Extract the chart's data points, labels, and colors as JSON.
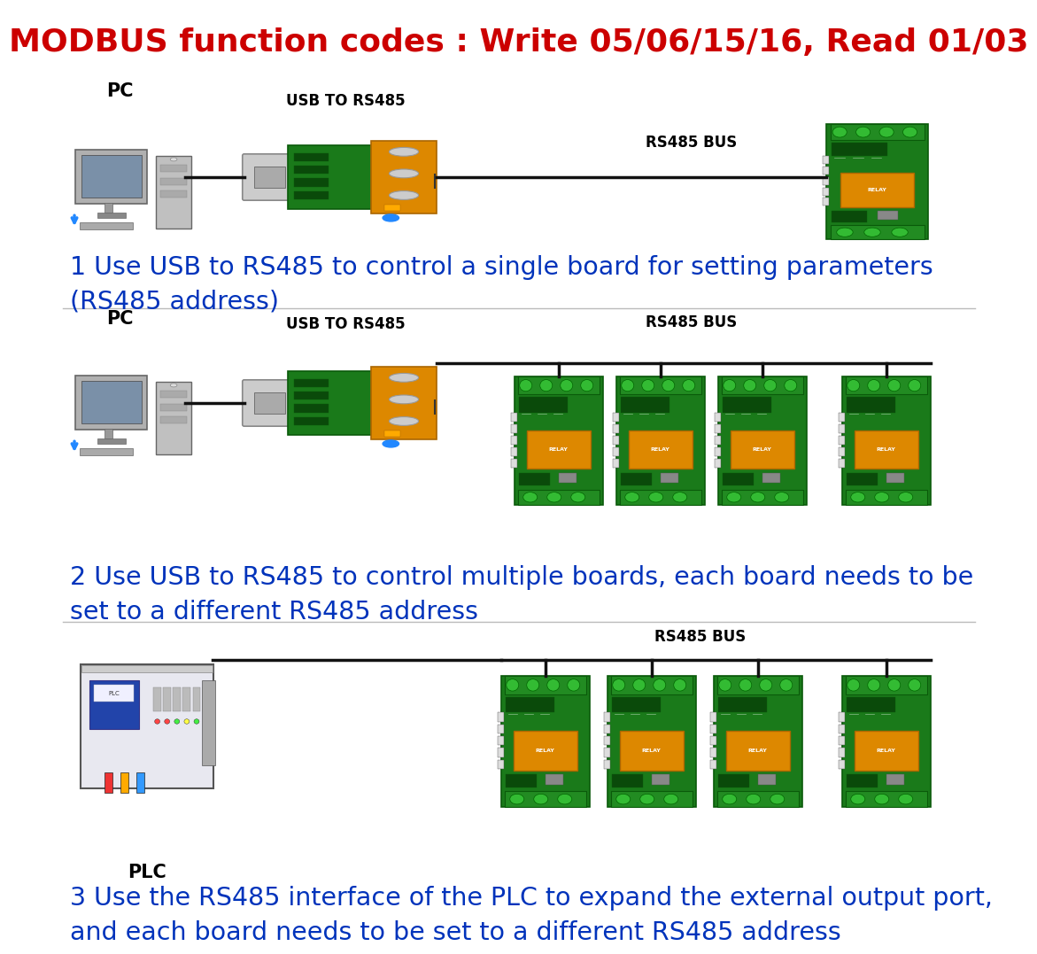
{
  "title": "MODBUS function codes : Write 05/06/15/16, Read 01/03",
  "title_color": "#CC0000",
  "title_fontsize": 26,
  "bg_color": "#FFFFFF",
  "text_color_blue": "#0033BB",
  "text_fontsize": 20.5,
  "section1_text": "1 Use USB to RS485 to control a single board for setting parameters\n(RS485 address)",
  "section2_text": "2 Use USB to RS485 to control multiple boards, each board needs to be\nset to a different RS485 address",
  "section3_text": "3 Use the RS485 interface of the PLC to expand the external output port,\nand each board needs to be set to a different RS485 address",
  "label_pc": "PC",
  "label_usb": "USB TO RS485",
  "label_bus": "RS485 BUS",
  "label_plc": "PLC",
  "sep_color": "#BBBBBB",
  "line_color": "#111111",
  "pcb_green": "#1A7A1A",
  "pcb_dark": "#0A5A0A",
  "pcb_light": "#2A9A2A",
  "relay_orange": "#DD8800",
  "relay_dark": "#AA6600",
  "usb_gray": "#BBBBBB",
  "usb_dark": "#888888",
  "terminal_green": "#228B22",
  "blue_indicator": "#2288FF"
}
